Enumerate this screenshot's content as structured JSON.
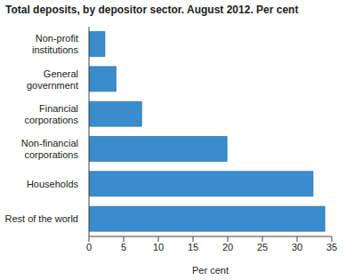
{
  "chart_data": {
    "type": "bar",
    "title": "Total deposits, by depositor sector. August 2012. Per cent",
    "orientation": "horizontal",
    "categories": [
      "Non-profit institutions",
      "General government",
      "Financial corporations",
      "Non-financial corporations",
      "Households",
      "Rest of the world"
    ],
    "values": [
      2.3,
      3.9,
      7.6,
      19.9,
      32.3,
      34.0
    ],
    "color": "#3a8dcd",
    "xlabel": "Per cent",
    "xlim": [
      0,
      35
    ],
    "xticks": [
      0,
      5,
      10,
      15,
      20,
      25,
      30,
      35
    ],
    "grid": false
  }
}
